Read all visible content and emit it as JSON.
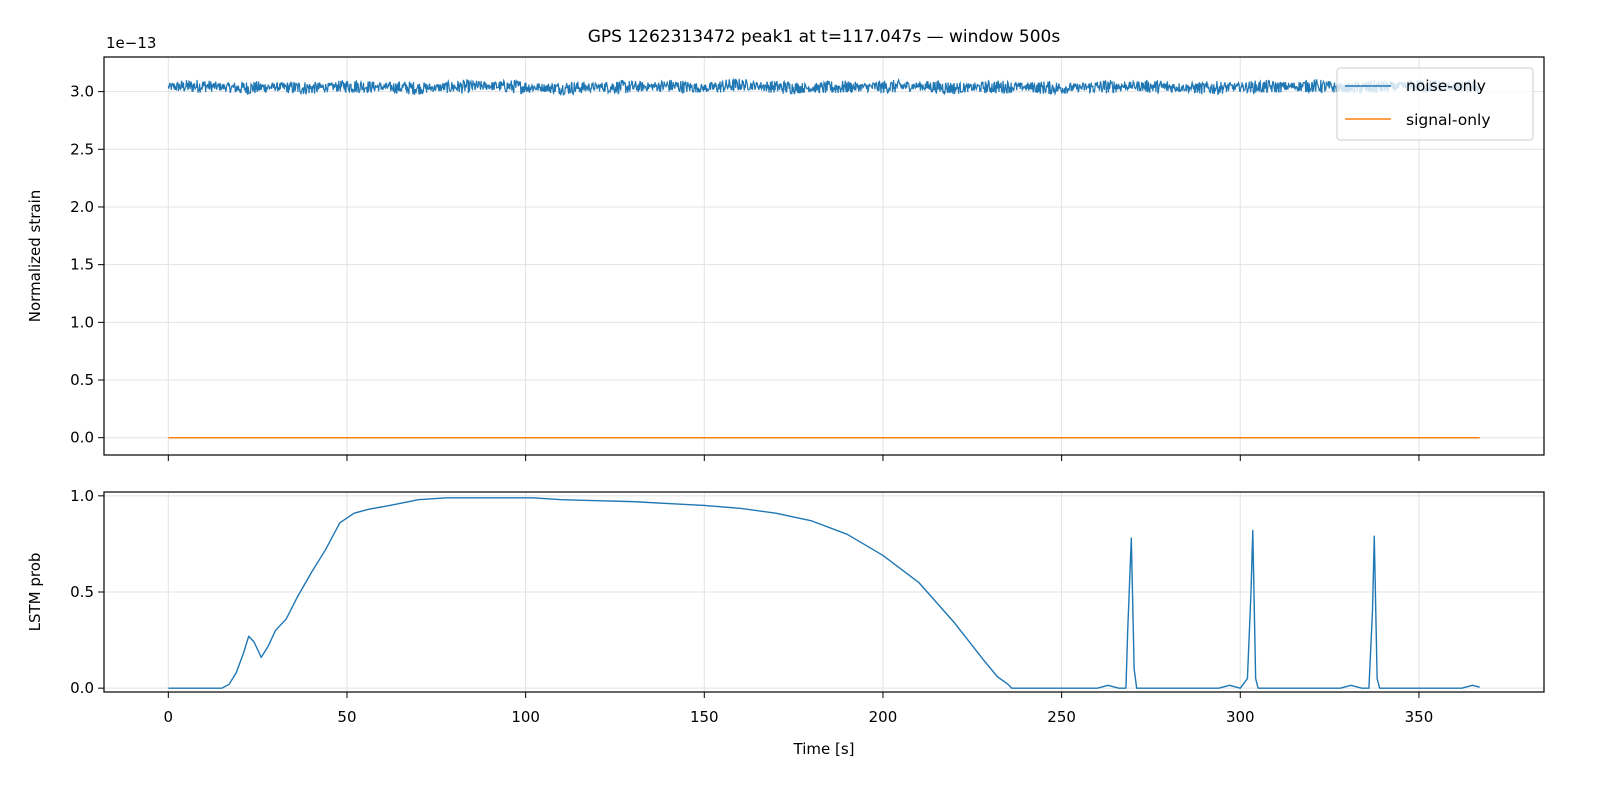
{
  "chart_data": [
    {
      "type": "line",
      "title": "GPS 1262313472 peak1 at t=117.047s — window 500s",
      "ylabel": "Normalized strain",
      "xlabel": "",
      "y_offset_label": "1e−13",
      "xlim": [
        -18,
        385
      ],
      "ylim": [
        -0.15,
        3.3
      ],
      "y_scale_note": "values in units of 1e-13",
      "x_ticks": [
        0,
        50,
        100,
        150,
        200,
        250,
        300,
        350
      ],
      "y_ticks": [
        0.0,
        0.5,
        1.0,
        1.5,
        2.0,
        2.5,
        3.0
      ],
      "y_tick_labels": [
        "0.0",
        "0.5",
        "1.0",
        "1.5",
        "2.0",
        "2.5",
        "3.0"
      ],
      "grid": true,
      "legend_position": "top-right",
      "series": [
        {
          "name": "noise-only",
          "color": "#1f77b4",
          "description_level": 3.04,
          "x_range": [
            0,
            367
          ],
          "envelope": [
            2.95,
            3.13
          ],
          "x": [
            0,
            10,
            20,
            30,
            40,
            50,
            60,
            70,
            80,
            90,
            100,
            110,
            120,
            130,
            140,
            150,
            160,
            170,
            180,
            190,
            200,
            210,
            220,
            230,
            240,
            250,
            260,
            270,
            280,
            290,
            300,
            310,
            320,
            330,
            340,
            350,
            360,
            367
          ],
          "values": [
            3.04,
            3.05,
            3.03,
            3.04,
            3.03,
            3.05,
            3.04,
            3.03,
            3.04,
            3.05,
            3.04,
            3.03,
            3.04,
            3.04,
            3.05,
            3.03,
            3.06,
            3.04,
            3.03,
            3.04,
            3.04,
            3.05,
            3.03,
            3.04,
            3.04,
            3.03,
            3.04,
            3.05,
            3.04,
            3.03,
            3.04,
            3.04,
            3.05,
            3.03,
            3.04,
            3.05,
            3.04,
            3.04
          ]
        },
        {
          "name": "signal-only",
          "color": "#ff7f0e",
          "x": [
            0,
            367
          ],
          "values": [
            0.0,
            0.0
          ]
        }
      ]
    },
    {
      "type": "line",
      "title": "",
      "ylabel": "LSTM prob",
      "xlabel": "Time [s]",
      "xlim": [
        -18,
        385
      ],
      "ylim": [
        -0.02,
        1.02
      ],
      "x_ticks": [
        0,
        50,
        100,
        150,
        200,
        250,
        300,
        350
      ],
      "x_tick_labels": [
        "0",
        "50",
        "100",
        "150",
        "200",
        "250",
        "300",
        "350"
      ],
      "y_ticks": [
        0.0,
        0.5,
        1.0
      ],
      "y_tick_labels": [
        "0.0",
        "0.5",
        "1.0"
      ],
      "grid": true,
      "series": [
        {
          "color": "#1f77b4",
          "x": [
            0,
            15,
            17,
            19,
            21,
            22.5,
            24,
            26,
            28,
            30,
            33,
            36,
            40,
            44,
            48,
            52,
            56,
            62,
            70,
            78,
            86,
            95,
            102,
            110,
            120,
            130,
            140,
            150,
            160,
            170,
            180,
            190,
            200,
            210,
            220,
            228,
            232,
            235,
            236,
            240,
            245,
            250,
            255,
            260,
            263,
            266,
            268,
            268.5,
            269.5,
            270.3,
            271,
            275,
            280,
            285,
            290,
            294,
            297,
            300,
            302,
            303,
            303.5,
            304.3,
            305,
            310,
            320,
            328,
            331,
            334,
            336,
            337,
            337.5,
            338.3,
            339,
            345,
            355,
            362,
            365,
            367
          ],
          "values": [
            0.0,
            0.0,
            0.02,
            0.08,
            0.18,
            0.27,
            0.24,
            0.16,
            0.22,
            0.3,
            0.36,
            0.47,
            0.6,
            0.72,
            0.86,
            0.91,
            0.93,
            0.95,
            0.98,
            0.99,
            0.99,
            0.99,
            0.99,
            0.98,
            0.975,
            0.97,
            0.96,
            0.95,
            0.935,
            0.91,
            0.87,
            0.8,
            0.69,
            0.55,
            0.34,
            0.15,
            0.06,
            0.02,
            0.0,
            0.0,
            0.0,
            0.0,
            0.0,
            0.0,
            0.015,
            0.0,
            0.0,
            0.3,
            0.78,
            0.1,
            0.0,
            0.0,
            0.0,
            0.0,
            0.0,
            0.0,
            0.015,
            0.0,
            0.05,
            0.5,
            0.82,
            0.05,
            0.0,
            0.0,
            0.0,
            0.0,
            0.015,
            0.0,
            0.0,
            0.4,
            0.79,
            0.05,
            0.0,
            0.0,
            0.0,
            0.0,
            0.015,
            0.005
          ]
        }
      ]
    }
  ],
  "legend": {
    "entries": [
      {
        "label": "noise-only",
        "color": "#1f77b4"
      },
      {
        "label": "signal-only",
        "color": "#ff7f0e"
      }
    ]
  },
  "colors": {
    "axis": "#000000",
    "grid": "#e3e3e3",
    "background": "#ffffff"
  }
}
